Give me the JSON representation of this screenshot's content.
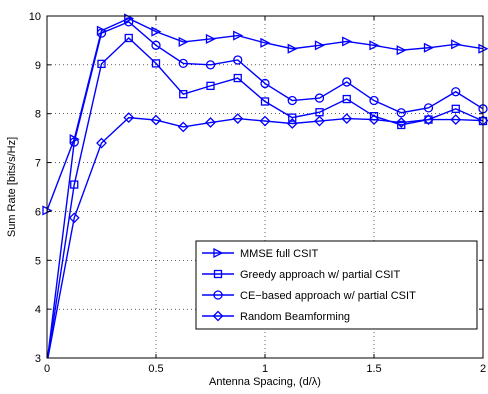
{
  "chart_data": {
    "type": "line",
    "title": "",
    "xlabel": "Antenna Spacing, (d/λ)",
    "ylabel": "Sum Rate [bits/s/Hz]",
    "xlim": [
      0,
      2
    ],
    "ylim": [
      3,
      10
    ],
    "xticks": [
      0,
      0.5,
      1,
      1.5,
      2
    ],
    "xtick_labels": [
      "0",
      "0.5",
      "1",
      "1.5",
      "2"
    ],
    "yticks": [
      3,
      4,
      5,
      6,
      7,
      8,
      9,
      10
    ],
    "ytick_labels": [
      "3",
      "4",
      "5",
      "6",
      "7",
      "8",
      "9",
      "10"
    ],
    "grid": true,
    "legend_position": "bottom-right",
    "line_color": "#0000ff",
    "x": [
      0,
      0.125,
      0.25,
      0.375,
      0.5,
      0.625,
      0.75,
      0.875,
      1.0,
      1.125,
      1.25,
      1.375,
      1.5,
      1.625,
      1.75,
      1.875,
      2.0
    ],
    "series": [
      {
        "name": "MMSE full CSIT",
        "marker": "triangle-right",
        "values": [
          6.02,
          7.48,
          9.7,
          9.95,
          9.68,
          9.47,
          9.53,
          9.6,
          9.45,
          9.33,
          9.4,
          9.48,
          9.4,
          9.3,
          9.35,
          9.42,
          9.33
        ]
      },
      {
        "name": "Greedy approach w/ partial CSIT",
        "marker": "square",
        "values": [
          2.9,
          6.55,
          9.02,
          9.55,
          9.03,
          8.4,
          8.57,
          8.73,
          8.25,
          7.92,
          8.03,
          8.3,
          7.95,
          7.77,
          7.88,
          8.1,
          7.85
        ]
      },
      {
        "name": "CE−based approach w/ partial CSIT",
        "marker": "circle",
        "values": [
          2.9,
          7.42,
          9.65,
          9.88,
          9.4,
          9.03,
          9.0,
          9.1,
          8.62,
          8.27,
          8.32,
          8.65,
          8.27,
          8.02,
          8.12,
          8.45,
          8.1
        ]
      },
      {
        "name": "Random Beamforming",
        "marker": "diamond",
        "values": [
          2.9,
          5.87,
          7.4,
          7.92,
          7.87,
          7.73,
          7.82,
          7.9,
          7.85,
          7.8,
          7.85,
          7.9,
          7.88,
          7.82,
          7.88,
          7.88,
          7.86
        ]
      }
    ]
  }
}
